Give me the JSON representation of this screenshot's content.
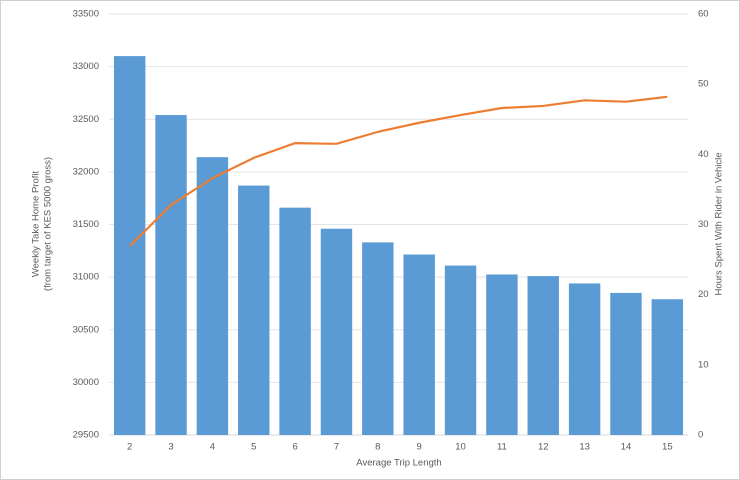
{
  "chart_data": {
    "type": "bar",
    "xlabel": "Average Trip Length",
    "ylabel": [
      "Weekly Take Home Profit",
      "(from target of KES 5000 gross)"
    ],
    "y2label": "Hours Spent With Rider in Vehicle",
    "categories": [
      2,
      3,
      4,
      5,
      6,
      7,
      8,
      9,
      10,
      11,
      12,
      13,
      14,
      15
    ],
    "series": [
      {
        "type": "bar",
        "color": "#5b9bd5",
        "values": [
          33100,
          32540,
          32140,
          31870,
          31660,
          31460,
          31330,
          31215,
          31110,
          31025,
          31010,
          30940,
          30850,
          30790
        ]
      },
      {
        "type": "line",
        "axis": "y2",
        "color": "#ed7d31",
        "values": [
          26.9,
          32.8,
          36.6,
          39.5,
          41.6,
          41.5,
          43.2,
          44.5,
          45.6,
          46.6,
          46.9,
          47.7,
          47.5,
          48.2
        ]
      }
    ],
    "ylim": [
      29500,
      33500
    ],
    "yticks": [
      29500,
      30000,
      30500,
      31000,
      31500,
      32000,
      32500,
      33000,
      33500
    ],
    "y2lim": [
      0,
      60
    ],
    "y2ticks": [
      0,
      10,
      20,
      30,
      40,
      50,
      60
    ],
    "grid": true
  }
}
